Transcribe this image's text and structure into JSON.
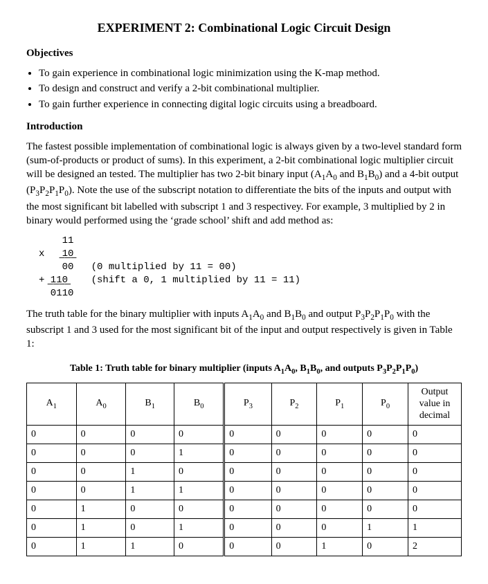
{
  "title": "EXPERIMENT 2: Combinational Logic Circuit Design",
  "sections": {
    "objectives_heading": "Objectives",
    "introduction_heading": "Introduction"
  },
  "objectives": [
    "To gain experience in combinational logic minimization using the K-map method.",
    "To design and construct and verify a 2-bit combinational multiplier.",
    "To gain further experience in connecting digital logic circuits using a breadboard."
  ],
  "intro_para_html": "The fastest possible implementation of combinational logic is always given by a two-level standard form (sum-of-products or product of sums). In this experiment, a 2-bit combinational logic multiplier circuit will be designed an tested. The multiplier has two 2-bit binary input (A<sub>1</sub>A<sub>0</sub> and B<sub>1</sub>B<sub>0</sub>) and a 4-bit output (P<sub>3</sub>P<sub>2</sub>P<sub>1</sub>P<sub>0</sub>).  Note the use of the subscript notation to differentiate the bits of the inputs and output with the most significant bit labelled with subscript 1 and 3 respectivey. For example, 3 multiplied by 2 in binary would performed using the ‘grade school’ shift and add method as:",
  "mono_block": "    11\nx   ̲1̲0̲\n    00   (0 multiplied by 11 = 00)\n+ ̲1̲1̲0̲    (shift a 0, 1 multiplied by 11 = 11)\n  0110",
  "after_mono_para_html": "The truth table for the binary multiplier with inputs A<sub>1</sub>A<sub>0</sub> and B<sub>1</sub>B<sub>0</sub> and output P<sub>3</sub>P<sub>2</sub>P<sub>1</sub>P<sub>0</sub> with the subscript 1 and 3 used for the most significant bit of the input and output respectively is given in Table 1:",
  "table_caption_html": "Table 1: Truth table for binary multiplier (inputs A<sub>1</sub>A<sub>0</sub>, B<sub>1</sub>B<sub>0</sub>, and outputs P<sub>3</sub>P<sub>2</sub>P<sub>1</sub>P<sub>0</sub>)",
  "table": {
    "headers_html": [
      "A<sub>1</sub>",
      "A<sub>0</sub>",
      "B<sub>1</sub>",
      "B<sub>0</sub>",
      "P<sub>3</sub>",
      "P<sub>2</sub>",
      "P<sub>1</sub>",
      "P<sub>0</sub>",
      "Output value in decimal"
    ],
    "rows": [
      [
        "0",
        "0",
        "0",
        "0",
        "0",
        "0",
        "0",
        "0",
        "0"
      ],
      [
        "0",
        "0",
        "0",
        "1",
        "0",
        "0",
        "0",
        "0",
        "0"
      ],
      [
        "0",
        "0",
        "1",
        "0",
        "0",
        "0",
        "0",
        "0",
        "0"
      ],
      [
        "0",
        "0",
        "1",
        "1",
        "0",
        "0",
        "0",
        "0",
        "0"
      ],
      [
        "0",
        "1",
        "0",
        "0",
        "0",
        "0",
        "0",
        "0",
        "0"
      ],
      [
        "0",
        "1",
        "0",
        "1",
        "0",
        "0",
        "0",
        "1",
        "1"
      ],
      [
        "0",
        "1",
        "1",
        "0",
        "0",
        "0",
        "1",
        "0",
        "2"
      ]
    ]
  }
}
